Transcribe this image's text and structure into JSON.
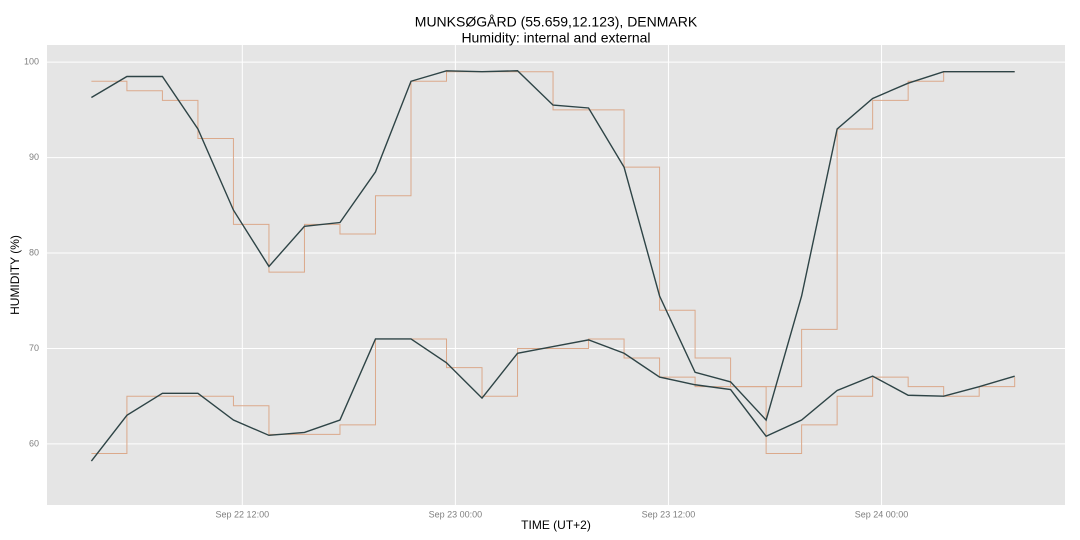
{
  "chart_data": {
    "type": "line",
    "title": "MUNKSØGÅRD (55.659,12.123), DENMARK",
    "subtitle": "Humidity: internal and external",
    "x_label": "TIME (UT+2)",
    "y_label": "HUMIDITY (%)",
    "x": [
      "Sep 22 03:30",
      "Sep 22 05:30",
      "Sep 22 07:30",
      "Sep 22 09:30",
      "Sep 22 11:30",
      "Sep 22 13:30",
      "Sep 22 15:30",
      "Sep 22 17:30",
      "Sep 22 19:30",
      "Sep 22 21:30",
      "Sep 22 23:30",
      "Sep 23 01:30",
      "Sep 23 03:30",
      "Sep 23 05:30",
      "Sep 23 07:30",
      "Sep 23 09:30",
      "Sep 23 11:30",
      "Sep 23 13:30",
      "Sep 23 15:30",
      "Sep 23 17:30",
      "Sep 23 19:30",
      "Sep 23 21:30",
      "Sep 23 23:30",
      "Sep 24 01:30",
      "Sep 24 03:30",
      "Sep 24 05:30",
      "Sep 24 07:30"
    ],
    "series": [
      {
        "color": "#dba98b",
        "step": true,
        "values": [
          98,
          97,
          96,
          92,
          83,
          78,
          83,
          82,
          86,
          98,
          99,
          99,
          99,
          95,
          95,
          89,
          74,
          69,
          66,
          66,
          72,
          93,
          96,
          98,
          99,
          99,
          99
        ]
      },
      {
        "color": "#dba98b",
        "step": true,
        "values": [
          59,
          65,
          65,
          65,
          64,
          61,
          61,
          62,
          71,
          71,
          68,
          65,
          70,
          70,
          71,
          69,
          67,
          66,
          66,
          59,
          62,
          65,
          67,
          66,
          65,
          66,
          67
        ]
      },
      {
        "color": "#2e4446",
        "step": false,
        "values": [
          96.3,
          98.5,
          98.5,
          93,
          84.5,
          78.6,
          82.8,
          83.2,
          88.5,
          98,
          99.1,
          99,
          99.1,
          95.5,
          95.2,
          89,
          75.5,
          67.5,
          66.5,
          62.5,
          75.5,
          93,
          96.2,
          97.8,
          99,
          99,
          99
        ]
      },
      {
        "color": "#2e4446",
        "step": false,
        "values": [
          58.2,
          63,
          65.3,
          65.3,
          62.5,
          60.9,
          61.2,
          62.5,
          71,
          71,
          68.5,
          64.8,
          69.5,
          70.2,
          70.9,
          69.5,
          67,
          66.2,
          65.7,
          60.8,
          62.5,
          65.6,
          67.1,
          65.1,
          65,
          66,
          67.1
        ]
      }
    ],
    "xlim": [
      "Sep 22 01:00",
      "Sep 24 10:20"
    ],
    "xticks": [
      "Sep 22 12:00",
      "Sep 23 00:00",
      "Sep 23 12:00",
      "Sep 24 00:00"
    ],
    "ylim": [
      53.6,
      101.8
    ],
    "yticks": [
      60,
      70,
      80,
      90,
      100
    ],
    "grid": true
  }
}
